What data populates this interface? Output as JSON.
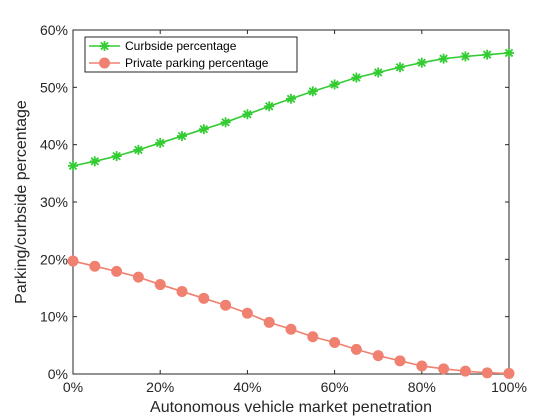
{
  "chart_data": {
    "type": "line",
    "xlabel": "Autonomous vehicle market penetration",
    "ylabel": "Parking/curbside percentage",
    "xlim": [
      0,
      100
    ],
    "ylim": [
      0,
      60
    ],
    "x_ticks": [
      "0%",
      "20%",
      "40%",
      "60%",
      "80%",
      "100%"
    ],
    "y_ticks": [
      "0%",
      "10%",
      "20%",
      "30%",
      "40%",
      "50%",
      "60%"
    ],
    "legend_position": "top-left",
    "grid": false,
    "x": [
      0,
      5,
      10,
      15,
      20,
      25,
      30,
      35,
      40,
      45,
      50,
      55,
      60,
      65,
      70,
      75,
      80,
      85,
      90,
      95,
      100
    ],
    "series": [
      {
        "name": "Curbside percentage",
        "color": "#33cc33",
        "marker": "asterisk",
        "values": [
          36.3,
          37.1,
          38.0,
          39.1,
          40.3,
          41.5,
          42.7,
          43.9,
          45.3,
          46.7,
          48.0,
          49.3,
          50.5,
          51.7,
          52.6,
          53.5,
          54.3,
          55.0,
          55.4,
          55.7,
          56.0
        ]
      },
      {
        "name": "Private parking percentage",
        "color": "#f08070",
        "marker": "circle",
        "values": [
          19.7,
          18.8,
          17.9,
          16.9,
          15.6,
          14.4,
          13.2,
          12.0,
          10.6,
          9.0,
          7.8,
          6.5,
          5.5,
          4.3,
          3.2,
          2.3,
          1.4,
          0.9,
          0.5,
          0.2,
          0.1
        ]
      }
    ]
  }
}
